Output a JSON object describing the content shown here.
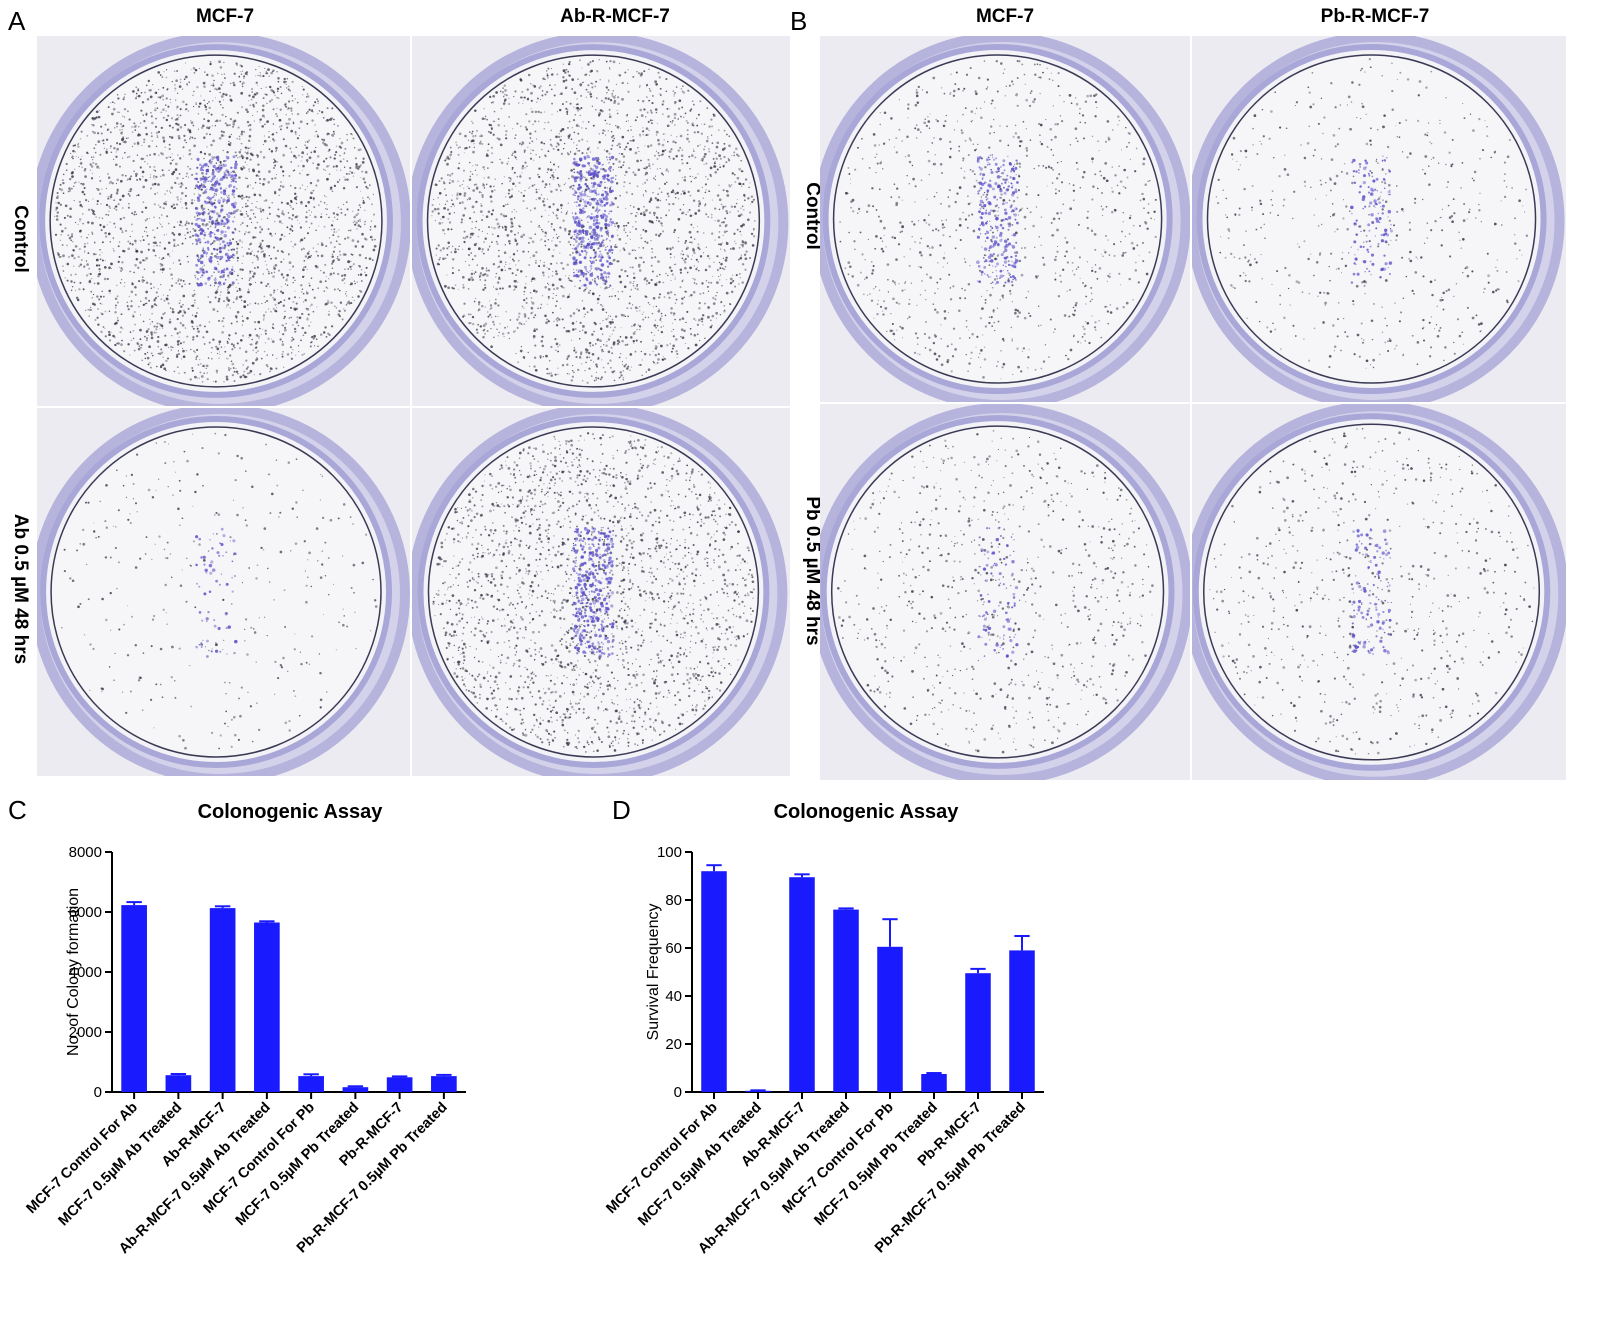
{
  "panelA": {
    "letter": "A",
    "col_titles": [
      "MCF-7",
      "Ab-R-MCF-7"
    ],
    "row_labels": [
      "Control",
      "Ab 0.5 µM 48 hrs"
    ]
  },
  "panelB": {
    "letter": "B",
    "col_titles": [
      "MCF-7",
      "Pb-R-MCF-7"
    ],
    "row_labels": [
      "Control",
      "Pb 0.5 µM 48 hrs"
    ]
  },
  "panelC": {
    "letter": "C"
  },
  "panelD": {
    "letter": "D"
  },
  "colors": {
    "bar": "#1a1aff",
    "stain": "#5a4fc8",
    "dish_rim": "#a9a6d8"
  },
  "wells": [
    {
      "name": "well-a-mcf7-control",
      "density": 1.0,
      "center_cluster": 0.8
    },
    {
      "name": "well-a-abr-control",
      "density": 0.9,
      "center_cluster": 1.0
    },
    {
      "name": "well-a-mcf7-ab",
      "density": 0.12,
      "center_cluster": 0.15
    },
    {
      "name": "well-a-abr-ab",
      "density": 0.85,
      "center_cluster": 0.9
    },
    {
      "name": "well-b-mcf7-control",
      "density": 0.35,
      "center_cluster": 0.6
    },
    {
      "name": "well-b-pbr-control",
      "density": 0.2,
      "center_cluster": 0.3
    },
    {
      "name": "well-b-mcf7-pb",
      "density": 0.3,
      "center_cluster": 0.2
    },
    {
      "name": "well-b-pbr-pb",
      "density": 0.25,
      "center_cluster": 0.3
    }
  ],
  "chart_data": [
    {
      "type": "bar",
      "title": "Colonogenic Assay",
      "ylabel": "No. of Colony formation",
      "xlabel": "",
      "ylim": [
        0,
        8000
      ],
      "yticks": [
        0,
        2000,
        4000,
        6000,
        8000
      ],
      "categories": [
        "MCF-7 Control For Ab",
        "MCF-7 0.5µM Ab Treated",
        "Ab-R-MCF-7",
        "Ab-R-MCF-7 0.5µM Ab Treated",
        "MCF-7 Control For Pb",
        "MCF-7 0.5µM Pb Treated",
        "Pb-R-MCF-7",
        "Pb-R-MCF-7 0.5µM Pb Treated"
      ],
      "values": [
        6230,
        560,
        6130,
        5650,
        530,
        160,
        490,
        530
      ],
      "errors": [
        100,
        40,
        60,
        40,
        60,
        30,
        30,
        40
      ]
    },
    {
      "type": "bar",
      "title": "Colonogenic Assay",
      "ylabel": "Survival Frequency",
      "xlabel": "",
      "ylim": [
        0,
        100
      ],
      "yticks": [
        0,
        20,
        40,
        60,
        80,
        100
      ],
      "categories": [
        "MCF-7 Control For Ab",
        "MCF-7 0.5µM Ab Treated",
        "Ab-R-MCF-7",
        "Ab-R-MCF-7 0.5µM Ab Treated",
        "MCF-7 Control For Pb",
        "MCF-7 0.5µM Pb Treated",
        "Pb-R-MCF-7",
        "Pb-R-MCF-7 0.5µM Pb Treated"
      ],
      "values": [
        92,
        0.5,
        89.5,
        76,
        60.5,
        7.5,
        49.5,
        59
      ],
      "errors": [
        2.5,
        0.2,
        1.2,
        0.5,
        11.5,
        0.4,
        1.8,
        6
      ]
    }
  ]
}
